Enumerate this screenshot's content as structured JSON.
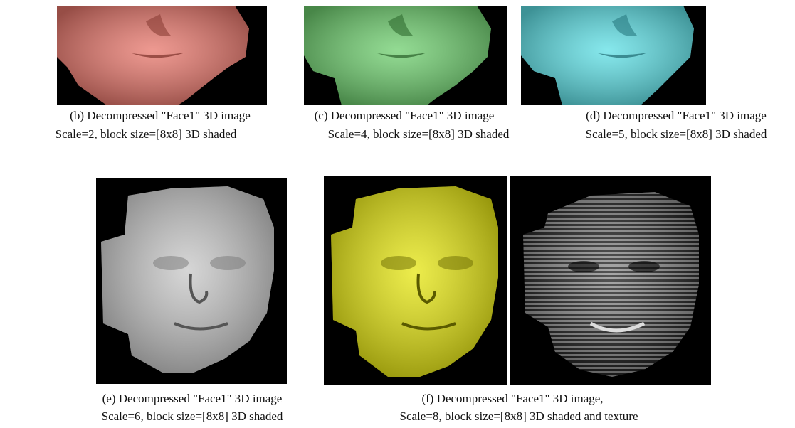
{
  "panels": [
    {
      "line1": "(b) Decompressed \"Face1\" 3D image",
      "line2": "Scale=2, block size=[8x8] 3D shaded"
    },
    {
      "line1": "(c) Decompressed \"Face1\" 3D image",
      "line2": "Scale=4, block size=[8x8] 3D shaded"
    },
    {
      "line1": "(d) Decompressed \"Face1\" 3D image",
      "line2": "Scale=5, block size=[8x8] 3D shaded"
    },
    {
      "line1": "(e) Decompressed \"Face1\" 3D image",
      "line2": "Scale=6, block size=[8x8] 3D shaded"
    },
    {
      "line1": "(f) Decompressed \"Face1\" 3D image,",
      "line2": "Scale=8, block size=[8x8] 3D shaded and texture"
    }
  ]
}
